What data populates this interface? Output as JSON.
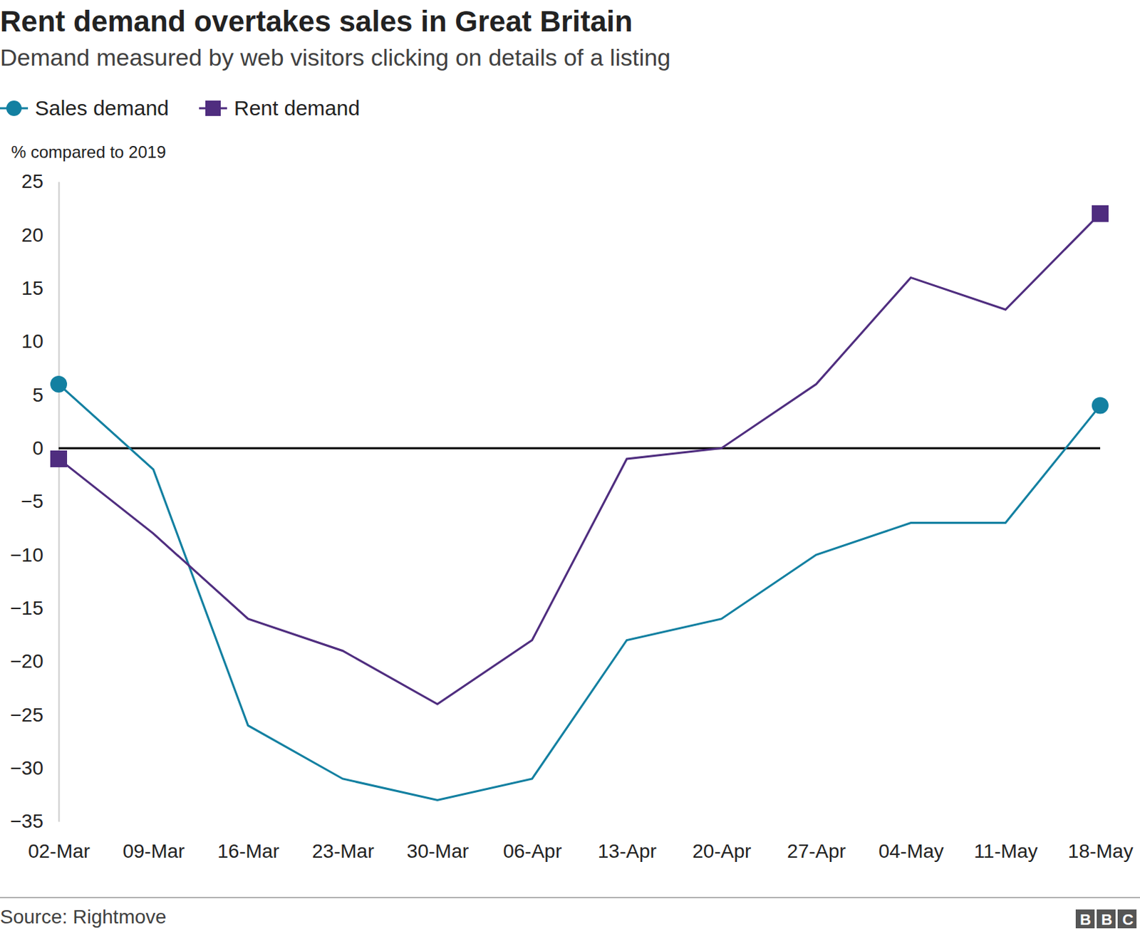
{
  "chart_data": {
    "type": "line",
    "title": "Rent demand overtakes sales in Great Britain",
    "subtitle": "Demand measured by web visitors clicking on details of a listing",
    "ylabel": "% compared to 2019",
    "source": "Source: Rightmove",
    "logo": "BBC",
    "categories": [
      "02-Mar",
      "09-Mar",
      "16-Mar",
      "23-Mar",
      "30-Mar",
      "06-Apr",
      "13-Apr",
      "20-Apr",
      "27-Apr",
      "04-May",
      "11-May",
      "18-May"
    ],
    "series": [
      {
        "name": "Sales demand",
        "color": "#1380a1",
        "marker": "circle",
        "values": [
          6,
          -2,
          -26,
          -31,
          -33,
          -31,
          -18,
          -16,
          -10,
          -7,
          -7,
          4
        ]
      },
      {
        "name": "Rent demand",
        "color": "#4f2d7f",
        "marker": "square",
        "values": [
          -1,
          -8,
          -16,
          -19,
          -24,
          -18,
          -1,
          0,
          6,
          16,
          13,
          22
        ]
      }
    ],
    "ylim": [
      -35,
      25
    ],
    "yticks": [
      {
        "value": -35,
        "label": "−35"
      },
      {
        "value": -30,
        "label": "−30"
      },
      {
        "value": -25,
        "label": "−25"
      },
      {
        "value": -20,
        "label": "−20"
      },
      {
        "value": -15,
        "label": "−15"
      },
      {
        "value": -10,
        "label": "−10"
      },
      {
        "value": -5,
        "label": "−5"
      },
      0,
      5,
      10,
      15,
      20,
      25
    ],
    "grid": false,
    "legend": "top-left"
  }
}
